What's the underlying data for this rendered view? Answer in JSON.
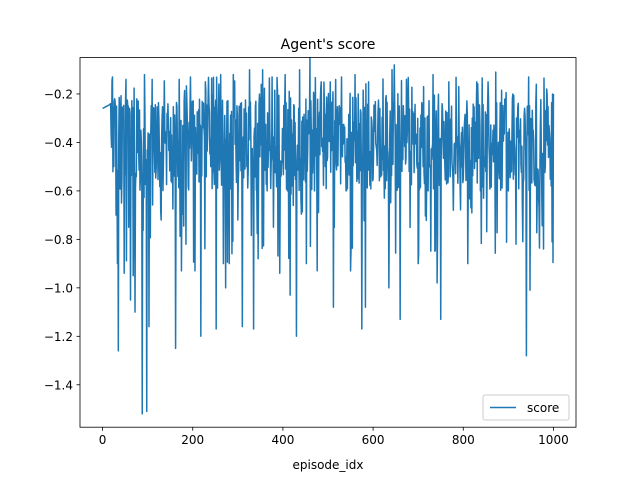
{
  "chart_data": {
    "type": "line",
    "title": "Agent's score",
    "xlabel": "episode_idx",
    "ylabel": "",
    "xlim": [
      -50,
      1050
    ],
    "ylim": [
      -1.575,
      -0.05
    ],
    "xticks": [
      0,
      200,
      400,
      600,
      800,
      1000
    ],
    "xtick_labels": [
      "0",
      "200",
      "400",
      "600",
      "800",
      "1000"
    ],
    "yticks": [
      -0.2,
      -0.4,
      -0.6,
      -0.8,
      -1.0,
      -1.2,
      -1.4
    ],
    "ytick_labels": [
      "−0.2",
      "−0.4",
      "−0.6",
      "−0.8",
      "−1.0",
      "−1.2",
      "−1.4"
    ],
    "grid": false,
    "legend_position": "lower-right",
    "series": [
      {
        "name": "score",
        "color": "#1f77b4",
        "n_points": 1001,
        "initial_segment": [
          [
            0,
            -0.26
          ],
          [
            5,
            -0.255
          ],
          [
            10,
            -0.25
          ],
          [
            15,
            -0.245
          ],
          [
            18,
            -0.24
          ]
        ],
        "notable_points": [
          [
            20,
            -0.42
          ],
          [
            22,
            -0.13
          ],
          [
            25,
            -0.5
          ],
          [
            27,
            -0.22
          ],
          [
            30,
            -0.7
          ],
          [
            33,
            -0.9
          ],
          [
            35,
            -1.26
          ],
          [
            42,
            -0.65
          ],
          [
            48,
            -0.94
          ],
          [
            52,
            -0.14
          ],
          [
            58,
            -0.75
          ],
          [
            62,
            -1.05
          ],
          [
            68,
            -0.95
          ],
          [
            72,
            -1.1
          ],
          [
            78,
            -0.3
          ],
          [
            85,
            -0.35
          ],
          [
            88,
            -1.52
          ],
          [
            93,
            -0.12
          ],
          [
            98,
            -1.51
          ],
          [
            103,
            -1.16
          ],
          [
            110,
            -0.14
          ],
          [
            120,
            -0.42
          ],
          [
            130,
            -0.72
          ],
          [
            143,
            -0.28
          ],
          [
            152,
            -0.56
          ],
          [
            162,
            -1.25
          ],
          [
            170,
            -0.14
          ],
          [
            175,
            -0.93
          ],
          [
            185,
            -0.82
          ],
          [
            195,
            -0.13
          ],
          [
            205,
            -0.93
          ],
          [
            218,
            -1.2
          ],
          [
            228,
            -0.15
          ],
          [
            240,
            -0.5
          ],
          [
            252,
            -1.17
          ],
          [
            262,
            -0.12
          ],
          [
            268,
            -0.9
          ],
          [
            273,
            -1.0
          ],
          [
            281,
            -0.9
          ],
          [
            290,
            -0.12
          ],
          [
            300,
            -0.72
          ],
          [
            310,
            -1.16
          ],
          [
            320,
            -0.5
          ],
          [
            326,
            -0.1
          ],
          [
            335,
            -1.17
          ],
          [
            340,
            -0.23
          ],
          [
            345,
            -0.88
          ],
          [
            355,
            -0.1
          ],
          [
            365,
            -0.6
          ],
          [
            376,
            -0.13
          ],
          [
            385,
            -0.48
          ],
          [
            393,
            -0.94
          ],
          [
            405,
            -0.12
          ],
          [
            410,
            -0.6
          ],
          [
            416,
            -1.03
          ],
          [
            425,
            -0.25
          ],
          [
            430,
            -1.2
          ],
          [
            437,
            -0.1
          ],
          [
            445,
            -0.5
          ],
          [
            452,
            -0.9
          ],
          [
            460,
            -0.05
          ],
          [
            470,
            -0.6
          ],
          [
            476,
            -0.93
          ],
          [
            485,
            -0.15
          ],
          [
            494,
            -0.5
          ],
          [
            505,
            -0.15
          ],
          [
            512,
            -1.08
          ],
          [
            520,
            -0.3
          ],
          [
            530,
            -0.13
          ],
          [
            540,
            -0.6
          ],
          [
            550,
            -0.93
          ],
          [
            560,
            -0.12
          ],
          [
            568,
            -0.42
          ],
          [
            575,
            -1.17
          ],
          [
            583,
            -1.08
          ],
          [
            590,
            -0.15
          ],
          [
            600,
            -0.55
          ],
          [
            615,
            -0.26
          ],
          [
            625,
            -0.63
          ],
          [
            635,
            -1.0
          ],
          [
            642,
            -0.1
          ],
          [
            647,
            -0.08
          ],
          [
            652,
            -0.52
          ],
          [
            660,
            -1.13
          ],
          [
            668,
            -0.32
          ],
          [
            680,
            -0.52
          ],
          [
            690,
            -0.28
          ],
          [
            700,
            -0.9
          ],
          [
            712,
            -0.17
          ],
          [
            722,
            -0.6
          ],
          [
            733,
            -0.12
          ],
          [
            742,
            -0.98
          ],
          [
            750,
            -1.13
          ],
          [
            758,
            -0.42
          ],
          [
            768,
            -0.15
          ],
          [
            778,
            -0.68
          ],
          [
            790,
            -0.17
          ],
          [
            800,
            -0.55
          ],
          [
            810,
            -0.9
          ],
          [
            820,
            -0.3
          ],
          [
            830,
            -0.15
          ],
          [
            838,
            -0.6
          ],
          [
            848,
            -0.5
          ],
          [
            855,
            -0.15
          ],
          [
            864,
            -0.45
          ],
          [
            872,
            -0.11
          ],
          [
            880,
            -0.55
          ],
          [
            890,
            -0.3
          ],
          [
            900,
            -0.6
          ],
          [
            910,
            -0.2
          ],
          [
            917,
            -0.82
          ],
          [
            925,
            -0.4
          ],
          [
            932,
            -0.81
          ],
          [
            940,
            -1.28
          ],
          [
            945,
            -0.13
          ],
          [
            948,
            -1.01
          ],
          [
            955,
            -0.35
          ],
          [
            962,
            -0.16
          ],
          [
            970,
            -0.5
          ],
          [
            978,
            -0.84
          ],
          [
            985,
            -0.18
          ],
          [
            990,
            -0.33
          ],
          [
            995,
            -0.58
          ],
          [
            998,
            -0.2
          ],
          [
            1000,
            -0.2
          ]
        ]
      }
    ]
  }
}
